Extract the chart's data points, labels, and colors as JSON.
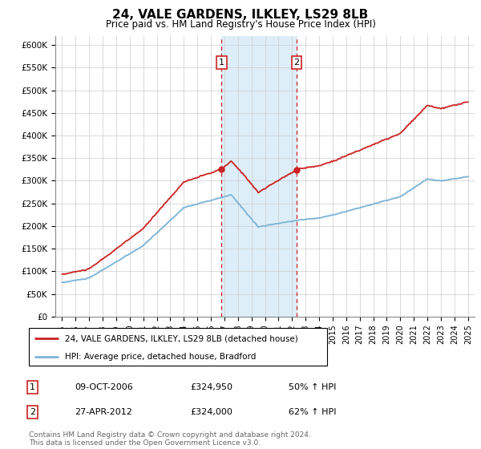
{
  "title": "24, VALE GARDENS, ILKLEY, LS29 8LB",
  "subtitle": "Price paid vs. HM Land Registry's House Price Index (HPI)",
  "legend_line1": "24, VALE GARDENS, ILKLEY, LS29 8LB (detached house)",
  "legend_line2": "HPI: Average price, detached house, Bradford",
  "transaction1_date": "09-OCT-2006",
  "transaction1_price": "£324,950",
  "transaction1_hpi": "50% ↑ HPI",
  "transaction2_date": "27-APR-2012",
  "transaction2_price": "£324,000",
  "transaction2_hpi": "62% ↑ HPI",
  "footer": "Contains HM Land Registry data © Crown copyright and database right 2024.\nThis data is licensed under the Open Government Licence v3.0.",
  "hpi_color": "#7ab3d8",
  "price_color": "#cc2222",
  "shading_color": "#ddeef8",
  "transaction1_x": 2006.78,
  "transaction2_x": 2012.33,
  "ylim_min": 0,
  "ylim_max": 620000,
  "xlim_min": 1994.5,
  "xlim_max": 2025.5
}
